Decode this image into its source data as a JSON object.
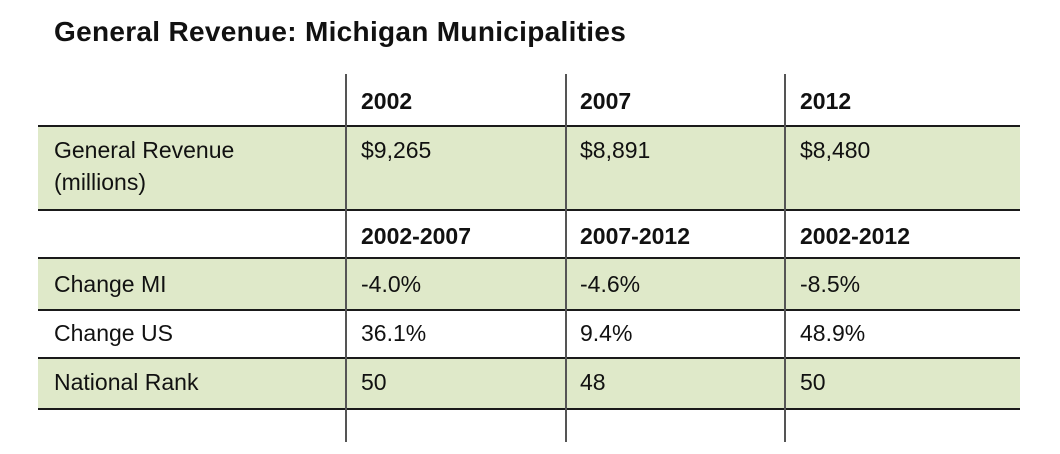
{
  "title": "General Revenue: Michigan Municipalities",
  "colors": {
    "row_highlight": "#dfe9c9",
    "rule": "#1a1a1a",
    "divider": "#555555"
  },
  "header_years": [
    "2002",
    "2007",
    "2012"
  ],
  "revenue_row": {
    "label_line1": "General Revenue",
    "label_line2": "(millions)",
    "values": [
      "$9,265",
      "$8,891",
      "$8,480"
    ]
  },
  "header_periods": [
    "2002-2007",
    "2007-2012",
    "2002-2012"
  ],
  "change_mi": {
    "label": "Change MI",
    "values": [
      "-4.0%",
      "-4.6%",
      "-8.5%"
    ]
  },
  "change_us": {
    "label": "Change US",
    "values": [
      "36.1%",
      "9.4%",
      "48.9%"
    ]
  },
  "national_rank": {
    "label": "National Rank",
    "values": [
      "50",
      "48",
      "50"
    ]
  }
}
